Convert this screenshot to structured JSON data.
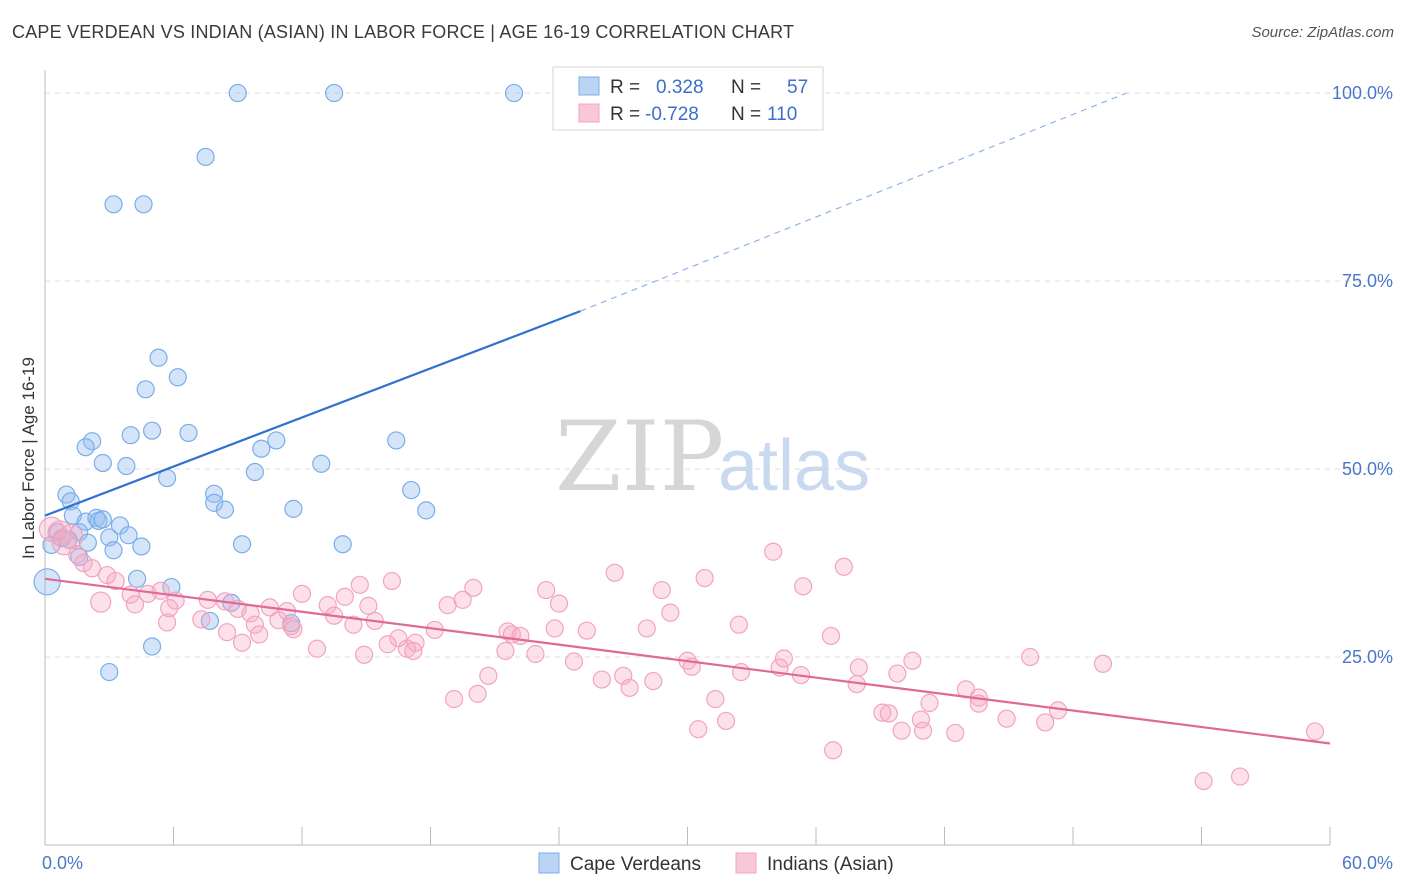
{
  "title": "CAPE VERDEAN VS INDIAN (ASIAN) IN LABOR FORCE | AGE 16-19 CORRELATION CHART",
  "source": "Source: ZipAtlas.com",
  "watermark": {
    "zip": "ZIP",
    "atlas": "atlas"
  },
  "chart_data": {
    "type": "scatter",
    "title": "CAPE VERDEAN VS INDIAN (ASIAN) IN LABOR FORCE | AGE 16-19 CORRELATION CHART",
    "xlabel": "",
    "ylabel": "In Labor Force | Age 16-19",
    "xlim": [
      0,
      60
    ],
    "ylim": [
      0,
      102
    ],
    "x_tick_labels": [
      "0.0%",
      "60.0%"
    ],
    "y_tick_values": [
      25,
      50,
      75,
      100
    ],
    "y_tick_labels": [
      "25.0%",
      "50.0%",
      "75.0%",
      "100.0%"
    ],
    "grid": true,
    "legend_position": "top-center",
    "series": [
      {
        "name": "Cape Verdeans",
        "color": "#7aaee8",
        "line_color": "#2f72cf",
        "R": "0.328",
        "N": "57",
        "trend": {
          "x0": 0,
          "y0": 43.8,
          "x1": 25,
          "y1": 71.0,
          "dash_to_x": 50.5,
          "dash_to_y": 100
        },
        "points": [
          [
            9.0,
            100
          ],
          [
            13.5,
            100
          ],
          [
            21.9,
            100
          ],
          [
            7.5,
            91.5
          ],
          [
            3.2,
            85.2
          ],
          [
            4.6,
            85.2
          ],
          [
            5.3,
            64.8
          ],
          [
            6.2,
            62.2
          ],
          [
            4.7,
            60.6
          ],
          [
            5.0,
            55.1
          ],
          [
            4.0,
            54.5
          ],
          [
            6.7,
            54.8
          ],
          [
            2.2,
            53.7
          ],
          [
            1.9,
            52.9
          ],
          [
            10.1,
            52.7
          ],
          [
            10.8,
            53.8
          ],
          [
            16.4,
            53.8
          ],
          [
            2.7,
            50.8
          ],
          [
            3.8,
            50.4
          ],
          [
            9.8,
            49.6
          ],
          [
            12.9,
            50.7
          ],
          [
            5.7,
            48.8
          ],
          [
            17.1,
            47.2
          ],
          [
            1.0,
            46.6
          ],
          [
            1.2,
            45.7
          ],
          [
            7.9,
            46.7
          ],
          [
            7.9,
            45.5
          ],
          [
            8.4,
            44.6
          ],
          [
            11.6,
            44.7
          ],
          [
            17.8,
            44.5
          ],
          [
            1.3,
            43.8
          ],
          [
            1.9,
            43.0
          ],
          [
            2.4,
            43.5
          ],
          [
            2.5,
            43.1
          ],
          [
            2.7,
            43.3
          ],
          [
            3.5,
            42.5
          ],
          [
            1.6,
            41.6
          ],
          [
            0.6,
            41.6
          ],
          [
            0.8,
            40.8
          ],
          [
            3.0,
            40.9
          ],
          [
            3.9,
            41.2
          ],
          [
            1.1,
            40.6
          ],
          [
            2.0,
            40.2
          ],
          [
            0.3,
            39.9
          ],
          [
            3.2,
            39.2
          ],
          [
            4.5,
            39.7
          ],
          [
            9.2,
            40.0
          ],
          [
            13.9,
            40.0
          ],
          [
            1.6,
            38.3
          ],
          [
            4.3,
            35.4
          ],
          [
            0.1,
            35.0
          ],
          [
            5.9,
            34.3
          ],
          [
            8.7,
            32.2
          ],
          [
            7.7,
            29.8
          ],
          [
            11.5,
            29.5
          ],
          [
            5.0,
            26.4
          ],
          [
            3.0,
            23.0
          ]
        ]
      },
      {
        "name": "Indians (Asian)",
        "color": "#f2a4bf",
        "line_color": "#e0689a",
        "R": "-0.728",
        "N": "110",
        "trend": {
          "x0": 0,
          "y0": 35.4,
          "x1": 60,
          "y1": 13.5
        },
        "points": [
          [
            0.3,
            42.0
          ],
          [
            0.7,
            41.5
          ],
          [
            1.2,
            41.0
          ],
          [
            0.9,
            40.2
          ],
          [
            1.5,
            38.6
          ],
          [
            1.8,
            37.5
          ],
          [
            2.2,
            36.8
          ],
          [
            2.9,
            35.9
          ],
          [
            3.3,
            35.1
          ],
          [
            4.0,
            33.3
          ],
          [
            4.8,
            33.4
          ],
          [
            5.4,
            33.8
          ],
          [
            2.6,
            32.3
          ],
          [
            4.2,
            32.0
          ],
          [
            6.1,
            32.5
          ],
          [
            5.8,
            31.5
          ],
          [
            7.6,
            32.6
          ],
          [
            8.4,
            32.4
          ],
          [
            9.0,
            31.4
          ],
          [
            9.6,
            30.8
          ],
          [
            10.5,
            31.6
          ],
          [
            11.3,
            31.1
          ],
          [
            12.0,
            33.4
          ],
          [
            13.2,
            31.9
          ],
          [
            7.3,
            30.0
          ],
          [
            5.7,
            29.6
          ],
          [
            9.8,
            29.3
          ],
          [
            10.9,
            29.9
          ],
          [
            11.5,
            29.1
          ],
          [
            13.5,
            30.5
          ],
          [
            14.4,
            29.3
          ],
          [
            8.5,
            28.3
          ],
          [
            10.0,
            28.0
          ],
          [
            11.6,
            28.7
          ],
          [
            14.0,
            33.0
          ],
          [
            14.7,
            34.6
          ],
          [
            16.2,
            35.1
          ],
          [
            15.1,
            31.8
          ],
          [
            15.4,
            29.8
          ],
          [
            16.5,
            27.5
          ],
          [
            16.0,
            26.7
          ],
          [
            17.3,
            26.9
          ],
          [
            16.9,
            26.1
          ],
          [
            12.7,
            26.1
          ],
          [
            9.2,
            26.9
          ],
          [
            14.9,
            25.3
          ],
          [
            17.2,
            25.8
          ],
          [
            18.2,
            28.6
          ],
          [
            18.8,
            31.9
          ],
          [
            19.5,
            32.6
          ],
          [
            20.0,
            34.2
          ],
          [
            21.6,
            28.4
          ],
          [
            21.8,
            28.0
          ],
          [
            22.2,
            27.8
          ],
          [
            22.9,
            25.4
          ],
          [
            23.4,
            33.9
          ],
          [
            23.8,
            28.8
          ],
          [
            24.0,
            32.1
          ],
          [
            24.7,
            24.4
          ],
          [
            25.3,
            28.5
          ],
          [
            26.0,
            22.0
          ],
          [
            27.0,
            22.5
          ],
          [
            27.3,
            20.9
          ],
          [
            26.6,
            36.2
          ],
          [
            28.1,
            28.8
          ],
          [
            28.4,
            21.8
          ],
          [
            19.1,
            19.4
          ],
          [
            20.2,
            20.1
          ],
          [
            20.7,
            22.5
          ],
          [
            21.5,
            25.8
          ],
          [
            29.2,
            30.9
          ],
          [
            28.8,
            33.9
          ],
          [
            30.0,
            24.5
          ],
          [
            30.2,
            23.7
          ],
          [
            30.8,
            35.5
          ],
          [
            31.3,
            19.4
          ],
          [
            31.8,
            16.5
          ],
          [
            30.5,
            15.4
          ],
          [
            32.5,
            23.0
          ],
          [
            32.4,
            29.3
          ],
          [
            34.0,
            39.0
          ],
          [
            34.3,
            23.6
          ],
          [
            34.5,
            24.8
          ],
          [
            35.3,
            22.6
          ],
          [
            35.4,
            34.4
          ],
          [
            36.7,
            27.8
          ],
          [
            36.8,
            12.6
          ],
          [
            37.3,
            37.0
          ],
          [
            37.9,
            21.4
          ],
          [
            38.0,
            23.6
          ],
          [
            39.1,
            17.6
          ],
          [
            39.4,
            17.5
          ],
          [
            39.8,
            22.8
          ],
          [
            40.0,
            15.2
          ],
          [
            40.5,
            24.5
          ],
          [
            40.9,
            16.7
          ],
          [
            41.0,
            15.2
          ],
          [
            41.3,
            18.9
          ],
          [
            42.5,
            14.9
          ],
          [
            43.0,
            20.7
          ],
          [
            43.6,
            19.6
          ],
          [
            43.6,
            18.8
          ],
          [
            44.9,
            16.8
          ],
          [
            46.0,
            25.0
          ],
          [
            46.7,
            16.3
          ],
          [
            47.3,
            17.9
          ],
          [
            49.4,
            24.1
          ],
          [
            54.1,
            8.5
          ],
          [
            55.8,
            9.1
          ],
          [
            59.3,
            15.1
          ]
        ]
      }
    ]
  },
  "legend_bottom": [
    "Cape Verdeans",
    "Indians (Asian)"
  ],
  "legend_top": {
    "r_label": "R =",
    "n_label": "N ="
  }
}
